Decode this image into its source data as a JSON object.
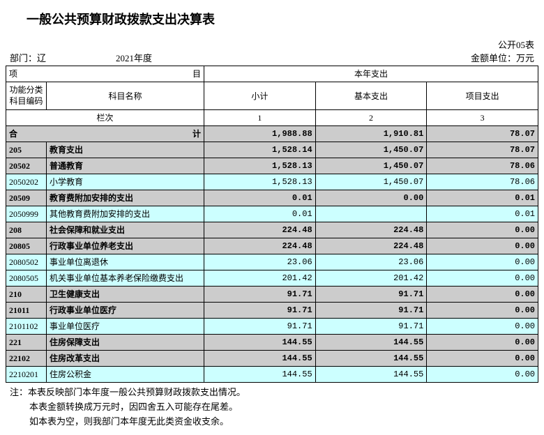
{
  "title": "一般公共预算财政拨款支出决算表",
  "form_no": "公开05表",
  "dept_label": "部门：辽",
  "year": "2021年度",
  "unit": "金额单位：万元",
  "header": {
    "item": "项",
    "item_right": "目",
    "current_year": "本年支出",
    "code": "功能分类科目编码",
    "name": "科目名称",
    "subtotal": "小计",
    "basic": "基本支出",
    "project": "项目支出",
    "col_label": "栏次",
    "c1": "1",
    "c2": "2",
    "c3": "3"
  },
  "total_row": {
    "left": "合",
    "right": "计",
    "v1": "1,988.88",
    "v2": "1,910.81",
    "v3": "78.07"
  },
  "rows": [
    {
      "code": "205",
      "name": "教育支出",
      "v1": "1,528.14",
      "v2": "1,450.07",
      "v3": "78.07",
      "bg": "grey",
      "bold": true,
      "indent": 0
    },
    {
      "code": "20502",
      "name": "普通教育",
      "v1": "1,528.13",
      "v2": "1,450.07",
      "v3": "78.06",
      "bg": "grey",
      "bold": true,
      "indent": 0
    },
    {
      "code": "2050202",
      "name": "小学教育",
      "v1": "1,528.13",
      "v2": "1,450.07",
      "v3": "78.06",
      "bg": "cyan",
      "bold": false,
      "indent": 1
    },
    {
      "code": "20509",
      "name": "教育费附加安排的支出",
      "v1": "0.01",
      "v2": "0.00",
      "v3": "0.01",
      "bg": "grey",
      "bold": true,
      "indent": 0
    },
    {
      "code": "2050999",
      "name": "其他教育费附加安排的支出",
      "v1": "0.01",
      "v2": "",
      "v3": "0.01",
      "bg": "cyan",
      "bold": false,
      "indent": 1
    },
    {
      "code": "208",
      "name": "社会保障和就业支出",
      "v1": "224.48",
      "v2": "224.48",
      "v3": "0.00",
      "bg": "grey",
      "bold": true,
      "indent": 0
    },
    {
      "code": "20805",
      "name": "行政事业单位养老支出",
      "v1": "224.48",
      "v2": "224.48",
      "v3": "0.00",
      "bg": "grey",
      "bold": true,
      "indent": 0
    },
    {
      "code": "2080502",
      "name": "事业单位离退休",
      "v1": "23.06",
      "v2": "23.06",
      "v3": "0.00",
      "bg": "cyan",
      "bold": false,
      "indent": 1
    },
    {
      "code": "2080505",
      "name": "机关事业单位基本养老保险缴费支出",
      "v1": "201.42",
      "v2": "201.42",
      "v3": "0.00",
      "bg": "cyan",
      "bold": false,
      "indent": 1
    },
    {
      "code": "210",
      "name": "卫生健康支出",
      "v1": "91.71",
      "v2": "91.71",
      "v3": "0.00",
      "bg": "grey",
      "bold": true,
      "indent": 0
    },
    {
      "code": "21011",
      "name": "行政事业单位医疗",
      "v1": "91.71",
      "v2": "91.71",
      "v3": "0.00",
      "bg": "grey",
      "bold": true,
      "indent": 0
    },
    {
      "code": "2101102",
      "name": "事业单位医疗",
      "v1": "91.71",
      "v2": "91.71",
      "v3": "0.00",
      "bg": "cyan",
      "bold": false,
      "indent": 1
    },
    {
      "code": "221",
      "name": "住房保障支出",
      "v1": "144.55",
      "v2": "144.55",
      "v3": "0.00",
      "bg": "grey",
      "bold": true,
      "indent": 0
    },
    {
      "code": "22102",
      "name": "住房改革支出",
      "v1": "144.55",
      "v2": "144.55",
      "v3": "0.00",
      "bg": "grey",
      "bold": true,
      "indent": 0
    },
    {
      "code": "2210201",
      "name": "住房公积金",
      "v1": "144.55",
      "v2": "144.55",
      "v3": "0.00",
      "bg": "cyan",
      "bold": false,
      "indent": 1
    }
  ],
  "notes": {
    "l1": "注：本表反映部门本年度一般公共预算财政拨款支出情况。",
    "l2": "本表金额转换成万元时，因四舍五入可能存在尾差。",
    "l3": "如本表为空，则我部门本年度无此类资金收支余。"
  },
  "colors": {
    "grey": "#cccccc",
    "cyan": "#ccffff",
    "border": "#000000",
    "background": "#ffffff"
  }
}
